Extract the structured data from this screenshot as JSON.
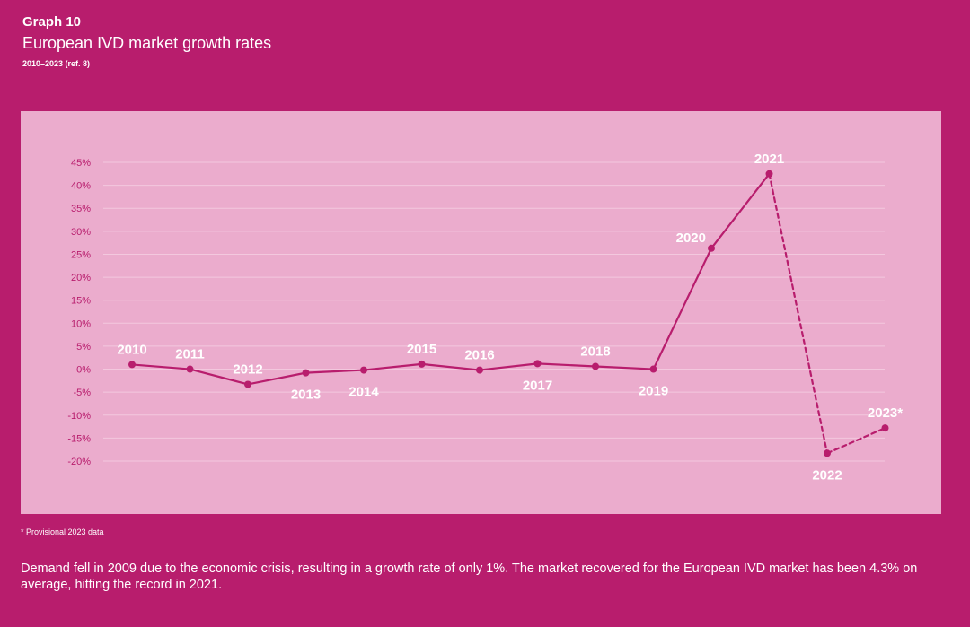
{
  "header": {
    "graph_label": "Graph 10",
    "title": "European IVD market growth rates",
    "subtitle": "2010–2023 (ref. 8)"
  },
  "footnote": "* Provisional 2023 data",
  "caption": "Demand fell in 2009 due to the economic crisis, resulting in a growth rate of only 1%. The market recovered for the European IVD market has been 4.3% on average, hitting the record in 2021.",
  "colors": {
    "background": "#b81d6d",
    "panel": "#ebaccd",
    "line": "#b81d6d",
    "gridline": "#f3c8de",
    "tick_label": "#b81d6d",
    "point_label": "#ffffff"
  },
  "chart_data": {
    "type": "line",
    "y_unit": "%",
    "ylim": [
      -20,
      45
    ],
    "y_ticks": [
      "45%",
      "40%",
      "35%",
      "30%",
      "25%",
      "20%",
      "15%",
      "10%",
      "5%",
      "0%",
      "-5%",
      "-10%",
      "-15%",
      "-20%"
    ],
    "grid": true,
    "points": [
      {
        "label": "2010",
        "value": 1,
        "label_pos": "above",
        "dashed_from_prev": false
      },
      {
        "label": "2011",
        "value": 0,
        "label_pos": "above",
        "dashed_from_prev": false
      },
      {
        "label": "2012",
        "value": -3.3,
        "label_pos": "above",
        "dashed_from_prev": false
      },
      {
        "label": "2013",
        "value": -0.8,
        "label_pos": "below",
        "dashed_from_prev": false
      },
      {
        "label": "2014",
        "value": -0.2,
        "label_pos": "below",
        "dashed_from_prev": false
      },
      {
        "label": "2015",
        "value": 1.1,
        "label_pos": "above",
        "dashed_from_prev": false
      },
      {
        "label": "2016",
        "value": -0.2,
        "label_pos": "above",
        "dashed_from_prev": false
      },
      {
        "label": "2017",
        "value": 1.2,
        "label_pos": "below",
        "dashed_from_prev": false
      },
      {
        "label": "2018",
        "value": 0.6,
        "label_pos": "above",
        "dashed_from_prev": false
      },
      {
        "label": "2019",
        "value": 0,
        "label_pos": "below",
        "dashed_from_prev": false
      },
      {
        "label": "2020",
        "value": 26.3,
        "label_pos": "left",
        "dashed_from_prev": false
      },
      {
        "label": "2021",
        "value": 42.5,
        "label_pos": "above",
        "dashed_from_prev": false
      },
      {
        "label": "2022",
        "value": -18.3,
        "label_pos": "below",
        "dashed_from_prev": true
      },
      {
        "label": "2023*",
        "value": -12.8,
        "label_pos": "above",
        "dashed_from_prev": true
      }
    ]
  }
}
